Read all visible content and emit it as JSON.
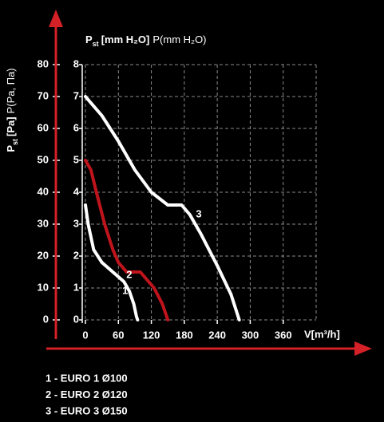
{
  "chart_data": {
    "type": "line",
    "y_label": {
      "symbol": "P",
      "subscript": "st",
      "unit_bold": "[Pa]",
      "unit": "P(Pa, Па)"
    },
    "y2_label": {
      "symbol": "P",
      "subscript": "st",
      "unit_bold": "[mm H₂O]",
      "unit": "P(mm H₂O)"
    },
    "x_label": "V[m³/h]",
    "xlim": [
      0,
      420
    ],
    "xticks": [
      0,
      60,
      120,
      180,
      240,
      300,
      360
    ],
    "ylim": [
      0,
      80
    ],
    "yticks": [
      0,
      10,
      20,
      30,
      40,
      50,
      60,
      70,
      80
    ],
    "y2lim": [
      0,
      8
    ],
    "y2ticks": [
      0,
      1,
      2,
      3,
      4,
      5,
      6,
      7,
      8
    ],
    "grid": true,
    "axis_color": "#d42027",
    "series": [
      {
        "name": "1 - EURO 1 Ø100",
        "label": "1",
        "color": "#ffffff",
        "x": [
          0,
          5,
          15,
          30,
          50,
          70,
          80,
          88,
          93,
          95
        ],
        "values": [
          36,
          30,
          22,
          18,
          15,
          12,
          9,
          5,
          1,
          0
        ]
      },
      {
        "name": "2 - EURO 2 Ø120",
        "label": "2",
        "color": "#c0141c",
        "x": [
          0,
          10,
          20,
          35,
          50,
          60,
          75,
          100,
          110,
          125,
          140,
          150
        ],
        "values": [
          50,
          47,
          40,
          30,
          22,
          18,
          15,
          15,
          13,
          10,
          5,
          0
        ]
      },
      {
        "name": "3 - EURO 3 Ø150",
        "label": "3",
        "color": "#ffffff",
        "x": [
          0,
          30,
          60,
          90,
          120,
          150,
          175,
          190,
          210,
          240,
          265,
          280
        ],
        "values": [
          70,
          64,
          56,
          47,
          40,
          36,
          36,
          33,
          27,
          17,
          8,
          0
        ]
      }
    ]
  }
}
